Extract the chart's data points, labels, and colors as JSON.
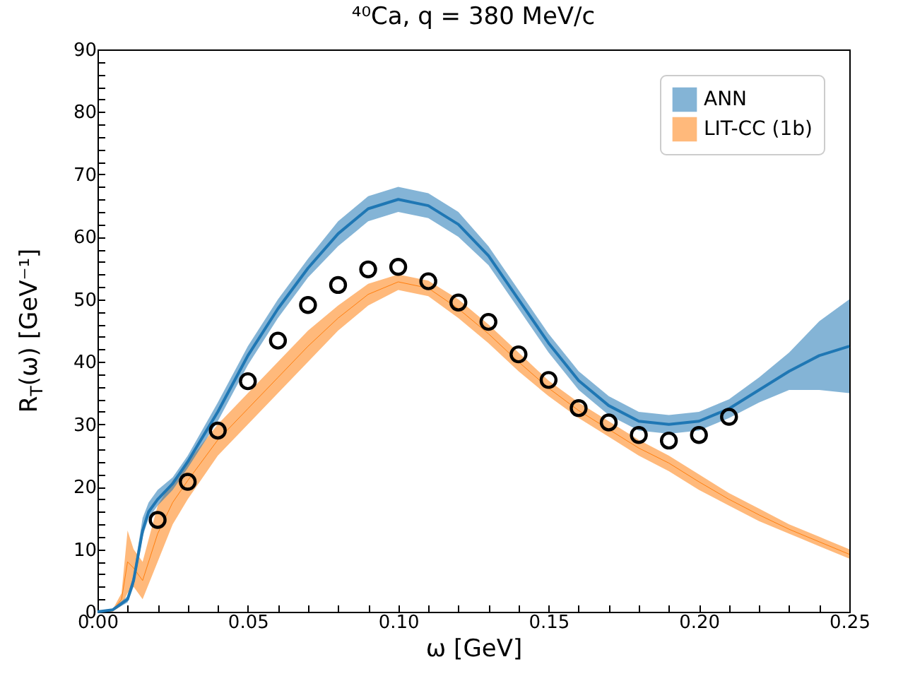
{
  "chart_data": {
    "type": "line",
    "title": "⁴⁰Ca, q = 380 MeV/c",
    "xlabel": "ω [GeV]",
    "ylabel": "R$_{T}$(ω) [GeV⁻¹]",
    "xlim": [
      0,
      0.25
    ],
    "ylim": [
      0,
      90
    ],
    "xticks": [
      {
        "value": 0,
        "label": "0.00"
      },
      {
        "value": 0.01,
        "label": null
      },
      {
        "value": 0.02,
        "label": null
      },
      {
        "value": 0.03,
        "label": null
      },
      {
        "value": 0.04,
        "label": null
      },
      {
        "value": 0.05,
        "label": "0.05"
      },
      {
        "value": 0.06,
        "label": null
      },
      {
        "value": 0.07,
        "label": null
      },
      {
        "value": 0.08,
        "label": null
      },
      {
        "value": 0.09,
        "label": null
      },
      {
        "value": 0.1,
        "label": "0.10"
      },
      {
        "value": 0.11,
        "label": null
      },
      {
        "value": 0.12,
        "label": null
      },
      {
        "value": 0.13,
        "label": null
      },
      {
        "value": 0.14,
        "label": null
      },
      {
        "value": 0.15,
        "label": "0.15"
      },
      {
        "value": 0.16,
        "label": null
      },
      {
        "value": 0.17,
        "label": null
      },
      {
        "value": 0.18,
        "label": null
      },
      {
        "value": 0.19,
        "label": null
      },
      {
        "value": 0.2,
        "label": "0.20"
      },
      {
        "value": 0.21,
        "label": null
      },
      {
        "value": 0.22,
        "label": null
      },
      {
        "value": 0.23,
        "label": null
      },
      {
        "value": 0.24,
        "label": null
      },
      {
        "value": 0.25,
        "label": "0.25"
      }
    ],
    "yticks": [
      0,
      {
        "value": 2,
        "label": null
      },
      {
        "value": 4,
        "label": null
      },
      {
        "value": 6,
        "label": null
      },
      {
        "value": 8,
        "label": null
      },
      10,
      {
        "value": 12,
        "label": null
      },
      {
        "value": 14,
        "label": null
      },
      {
        "value": 16,
        "label": null
      },
      {
        "value": 18,
        "label": null
      },
      20,
      {
        "value": 22,
        "label": null
      },
      {
        "value": 24,
        "label": null
      },
      {
        "value": 26,
        "label": null
      },
      {
        "value": 28,
        "label": null
      },
      30,
      {
        "value": 32,
        "label": null
      },
      {
        "value": 34,
        "label": null
      },
      {
        "value": 36,
        "label": null
      },
      {
        "value": 38,
        "label": null
      },
      40,
      {
        "value": 42,
        "label": null
      },
      {
        "value": 44,
        "label": null
      },
      {
        "value": 46,
        "label": null
      },
      {
        "value": 48,
        "label": null
      },
      50,
      {
        "value": 52,
        "label": null
      },
      {
        "value": 54,
        "label": null
      },
      {
        "value": 56,
        "label": null
      },
      {
        "value": 58,
        "label": null
      },
      60,
      {
        "value": 62,
        "label": null
      },
      {
        "value": 64,
        "label": null
      },
      {
        "value": 66,
        "label": null
      },
      {
        "value": 68,
        "label": null
      },
      70,
      {
        "value": 72,
        "label": null
      },
      {
        "value": 74,
        "label": null
      },
      {
        "value": 76,
        "label": null
      },
      {
        "value": 78,
        "label": null
      },
      80,
      {
        "value": 82,
        "label": null
      },
      {
        "value": 84,
        "label": null
      },
      {
        "value": 86,
        "label": null
      },
      {
        "value": 88,
        "label": null
      },
      90
    ],
    "legend": "top right",
    "grid": false,
    "series": [
      {
        "name": "LIT-CC (1b)",
        "color": "#ff7f0e",
        "x": [
          0,
          0.005,
          0.008,
          0.01,
          0.012,
          0.015,
          0.02,
          0.025,
          0.03,
          0.04,
          0.05,
          0.06,
          0.07,
          0.08,
          0.09,
          0.1,
          0.11,
          0.12,
          0.13,
          0.14,
          0.15,
          0.16,
          0.17,
          0.18,
          0.19,
          0.2,
          0.21,
          0.22,
          0.23,
          0.24,
          0.25
        ],
        "values": [
          0,
          0.2,
          2,
          8,
          7,
          5,
          12.5,
          17.5,
          21,
          27.5,
          32.5,
          37.5,
          42.5,
          47,
          50.8,
          52.8,
          51.8,
          48.5,
          44.5,
          40,
          35.8,
          32.2,
          29.2,
          26.2,
          23.8,
          20.8,
          18,
          15.5,
          13.2,
          11.2,
          9.2
        ],
        "lower": [
          0,
          0,
          1,
          3,
          4,
          2,
          8,
          14,
          18,
          25,
          30,
          35,
          40,
          45,
          49,
          51.5,
          50.5,
          47,
          43,
          38.5,
          34.5,
          31,
          28,
          25,
          22.5,
          19.5,
          17,
          14.5,
          12.5,
          10.5,
          8.5
        ],
        "upper": [
          0,
          0.3,
          3,
          13,
          10,
          8,
          17,
          21,
          24,
          30,
          35,
          40,
          45,
          49,
          52.5,
          54,
          53,
          50,
          46,
          41.5,
          37,
          33.5,
          30.5,
          27.5,
          25,
          22,
          19,
          16.5,
          14,
          12,
          10
        ]
      },
      {
        "name": "ANN",
        "color": "#1f77b4",
        "x": [
          0,
          0.005,
          0.01,
          0.012,
          0.015,
          0.017,
          0.02,
          0.025,
          0.03,
          0.04,
          0.05,
          0.06,
          0.07,
          0.08,
          0.09,
          0.1,
          0.11,
          0.12,
          0.13,
          0.14,
          0.15,
          0.16,
          0.17,
          0.18,
          0.19,
          0.2,
          0.21,
          0.22,
          0.23,
          0.24,
          0.25
        ],
        "values": [
          0,
          0.3,
          2,
          5,
          13,
          16,
          18,
          20.5,
          24,
          32,
          41,
          48.5,
          55,
          60.5,
          64.5,
          66,
          65,
          62,
          57,
          50,
          43,
          37,
          33,
          30.5,
          30,
          30.5,
          32.5,
          35.5,
          38.5,
          41,
          42.5
        ],
        "lower": [
          0,
          0.1,
          1.5,
          4,
          12,
          15,
          17,
          19.5,
          23,
          30.5,
          39.5,
          47,
          53.5,
          58.5,
          62.5,
          64,
          63,
          60,
          55.5,
          48.5,
          41.5,
          35.5,
          31.5,
          29,
          28.5,
          29,
          31,
          33.5,
          35.5,
          35.5,
          35
        ],
        "upper": [
          0,
          0.5,
          2.5,
          6,
          15,
          17.5,
          19.5,
          21.5,
          25,
          33.5,
          42.5,
          50,
          56.5,
          62.5,
          66.5,
          68,
          67,
          64,
          58.5,
          51.5,
          44.5,
          38.5,
          34.5,
          32,
          31.5,
          32,
          34,
          37.5,
          41.5,
          46.5,
          50
        ]
      },
      {
        "type": "scatter",
        "color": "#000000",
        "marker": "circle",
        "x": [
          0.02,
          0.03,
          0.04,
          0.05,
          0.06,
          0.07,
          0.08,
          0.09,
          0.1,
          0.11,
          0.12,
          0.13,
          0.14,
          0.15,
          0.16,
          0.17,
          0.18,
          0.19,
          0.2,
          0.21
        ],
        "values": [
          14.7,
          20.8,
          29,
          36.9,
          43.4,
          49.1,
          52.3,
          54.8,
          55.2,
          52.9,
          49.5,
          46.4,
          41.2,
          37.1,
          32.6,
          30.3,
          28.3,
          27.4,
          28.3,
          31.2
        ]
      }
    ]
  }
}
